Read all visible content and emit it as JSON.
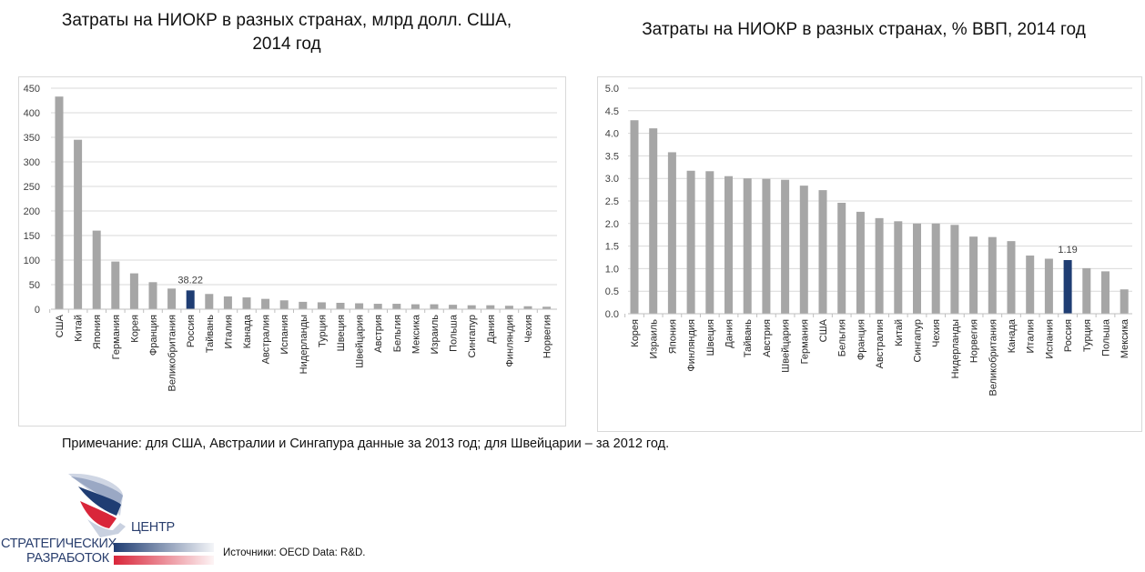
{
  "chart_data": [
    {
      "type": "bar",
      "title": "Затраты на НИОКР в разных странах, млрд долл. США, 2014 год",
      "title_line1": "Затраты на НИОКР в разных странах, млрд долл. США,",
      "title_line2": "2014 год",
      "xlabel": "",
      "ylabel": "",
      "ylim": [
        0,
        450
      ],
      "yticks": [
        "0",
        "50",
        "100",
        "150",
        "200",
        "250",
        "300",
        "350",
        "400",
        "450"
      ],
      "grid": true,
      "highlight": {
        "category": "Россия",
        "label": "38.22",
        "color": "#1f3d73"
      },
      "bar_color": "#a6a6a6",
      "categories": [
        "США",
        "Китай",
        "Япония",
        "Германия",
        "Корея",
        "Франция",
        "Великобритания",
        "Россия",
        "Тайвань",
        "Италия",
        "Канада",
        "Австралия",
        "Испания",
        "Нидерланды",
        "Турция",
        "Швеция",
        "Швейцария",
        "Австрия",
        "Бельгия",
        "Мексика",
        "Израиль",
        "Польша",
        "Сингапур",
        "Дания",
        "Финляндия",
        "Чехия",
        "Норвегия"
      ],
      "values": [
        433,
        345,
        160,
        97,
        73,
        55,
        42,
        38.22,
        31,
        26,
        24,
        21,
        18,
        15,
        14,
        13,
        12,
        11,
        11,
        10,
        10,
        9,
        8,
        8,
        7,
        6,
        5
      ]
    },
    {
      "type": "bar",
      "title": "Затраты на НИОКР в разных странах, % ВВП, 2014 год",
      "xlabel": "",
      "ylabel": "",
      "ylim": [
        0,
        5.0
      ],
      "yticks": [
        "0.0",
        "0.5",
        "1.0",
        "1.5",
        "2.0",
        "2.5",
        "3.0",
        "3.5",
        "4.0",
        "4.5",
        "5.0"
      ],
      "grid": true,
      "highlight": {
        "category": "Россия",
        "label": "1.19",
        "color": "#1f3d73"
      },
      "bar_color": "#a6a6a6",
      "categories": [
        "Корея",
        "Израиль",
        "Япония",
        "Финляндия",
        "Швеция",
        "Дания",
        "Тайвань",
        "Австрия",
        "Швейцария",
        "Германия",
        "США",
        "Бельгия",
        "Франция",
        "Австралия",
        "Китай",
        "Сингапур",
        "Чехия",
        "Нидерланды",
        "Норвегия",
        "Великобритания",
        "Канада",
        "Италия",
        "Испания",
        "Россия",
        "Турция",
        "Польша",
        "Мексика"
      ],
      "values": [
        4.29,
        4.11,
        3.58,
        3.17,
        3.16,
        3.05,
        3.0,
        2.99,
        2.97,
        2.84,
        2.74,
        2.46,
        2.26,
        2.12,
        2.05,
        2.0,
        2.0,
        1.97,
        1.71,
        1.7,
        1.61,
        1.29,
        1.22,
        1.19,
        1.01,
        0.94,
        0.54
      ]
    }
  ],
  "note": "Примечание: для США, Австралии и Сингапура данные за 2013 год; для Швейцарии – за 2012 год.",
  "source": "Источники: OECD Data: R&D.",
  "logo": {
    "line1": "ЦЕНТР",
    "line2": "СТРАТЕГИЧЕСКИХ",
    "line3": "РАЗРАБОТОК",
    "colors": {
      "blue": "#1f3d73",
      "red": "#d9263a"
    }
  }
}
